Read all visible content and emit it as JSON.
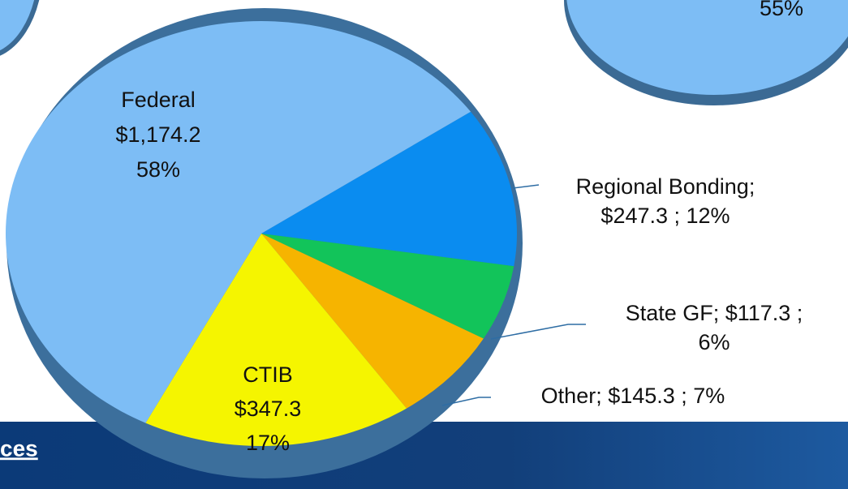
{
  "chart_data": {
    "type": "pie",
    "categories": [
      "Regional Bonding",
      "State GF",
      "Other",
      "CTIB",
      "Federal"
    ],
    "values": [
      247.3,
      117.3,
      145.3,
      347.3,
      1174.2
    ],
    "shares": [
      12,
      6,
      7,
      17,
      58
    ],
    "colors": [
      "#0a8cf0",
      "#12c45a",
      "#f6b400",
      "#f5f500",
      "#7dbdf5"
    ],
    "label_lines": [
      [
        "Regional Bonding;",
        "$247.3 ; 12%"
      ],
      [
        "State GF;  $117.3 ;",
        "6%"
      ],
      [
        "Other;  $145.3 ; 7%"
      ],
      [
        "CTIB",
        "$347.3",
        "17%"
      ],
      [
        "Federal",
        "$1,174.2",
        "58%"
      ]
    ]
  },
  "fragments": {
    "top_right_label": "55%",
    "footer_link": "ces"
  }
}
